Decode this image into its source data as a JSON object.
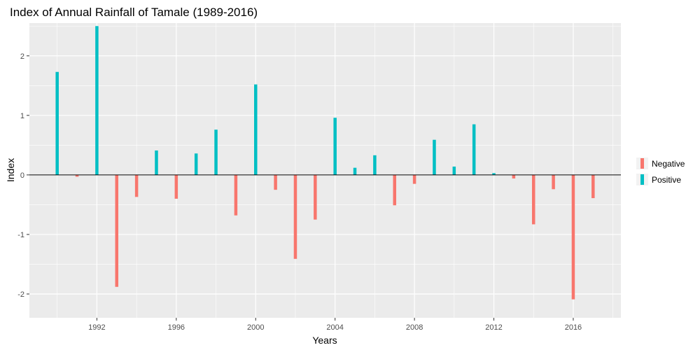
{
  "chart_data": {
    "type": "bar",
    "title": "Index of Annual Rainfall of Tamale (1989-2016)",
    "xlabel": "Years",
    "ylabel": "Index",
    "xlim": [
      1988.6,
      2018.4
    ],
    "ylim": [
      -2.4,
      2.55
    ],
    "x_ticks": [
      1992,
      1996,
      2000,
      2004,
      2008,
      2012,
      2016
    ],
    "y_ticks": [
      -2,
      -1,
      0,
      1,
      2
    ],
    "grid": true,
    "legend_position": "right",
    "series": [
      {
        "name": "Negative",
        "color": "#F8766D"
      },
      {
        "name": "Positive",
        "color": "#00BFC4"
      }
    ],
    "points": [
      {
        "year": 1990,
        "value": 1.73,
        "group": "Positive"
      },
      {
        "year": 1991,
        "value": -0.03,
        "group": "Negative"
      },
      {
        "year": 1992,
        "value": 2.5,
        "group": "Positive"
      },
      {
        "year": 1993,
        "value": -1.88,
        "group": "Negative"
      },
      {
        "year": 1994,
        "value": -0.37,
        "group": "Negative"
      },
      {
        "year": 1995,
        "value": 0.41,
        "group": "Positive"
      },
      {
        "year": 1996,
        "value": -0.4,
        "group": "Negative"
      },
      {
        "year": 1997,
        "value": 0.36,
        "group": "Positive"
      },
      {
        "year": 1998,
        "value": 0.76,
        "group": "Positive"
      },
      {
        "year": 1999,
        "value": -0.68,
        "group": "Negative"
      },
      {
        "year": 2000,
        "value": 1.52,
        "group": "Positive"
      },
      {
        "year": 2001,
        "value": -0.25,
        "group": "Negative"
      },
      {
        "year": 2002,
        "value": -1.41,
        "group": "Negative"
      },
      {
        "year": 2003,
        "value": -0.75,
        "group": "Negative"
      },
      {
        "year": 2004,
        "value": 0.96,
        "group": "Positive"
      },
      {
        "year": 2005,
        "value": 0.12,
        "group": "Positive"
      },
      {
        "year": 2006,
        "value": 0.33,
        "group": "Positive"
      },
      {
        "year": 2007,
        "value": -0.51,
        "group": "Negative"
      },
      {
        "year": 2008,
        "value": -0.15,
        "group": "Negative"
      },
      {
        "year": 2009,
        "value": 0.59,
        "group": "Positive"
      },
      {
        "year": 2010,
        "value": 0.14,
        "group": "Positive"
      },
      {
        "year": 2011,
        "value": 0.85,
        "group": "Positive"
      },
      {
        "year": 2012,
        "value": 0.03,
        "group": "Positive"
      },
      {
        "year": 2013,
        "value": -0.06,
        "group": "Negative"
      },
      {
        "year": 2014,
        "value": -0.83,
        "group": "Negative"
      },
      {
        "year": 2015,
        "value": -0.24,
        "group": "Negative"
      },
      {
        "year": 2016,
        "value": -2.09,
        "group": "Negative"
      },
      {
        "year": 2017,
        "value": -0.39,
        "group": "Negative"
      }
    ]
  },
  "style": {
    "panel_background": "#EBEBEB",
    "grid_color": "#FFFFFF",
    "zero_line_color": "#000000",
    "tick_color": "#333333"
  }
}
